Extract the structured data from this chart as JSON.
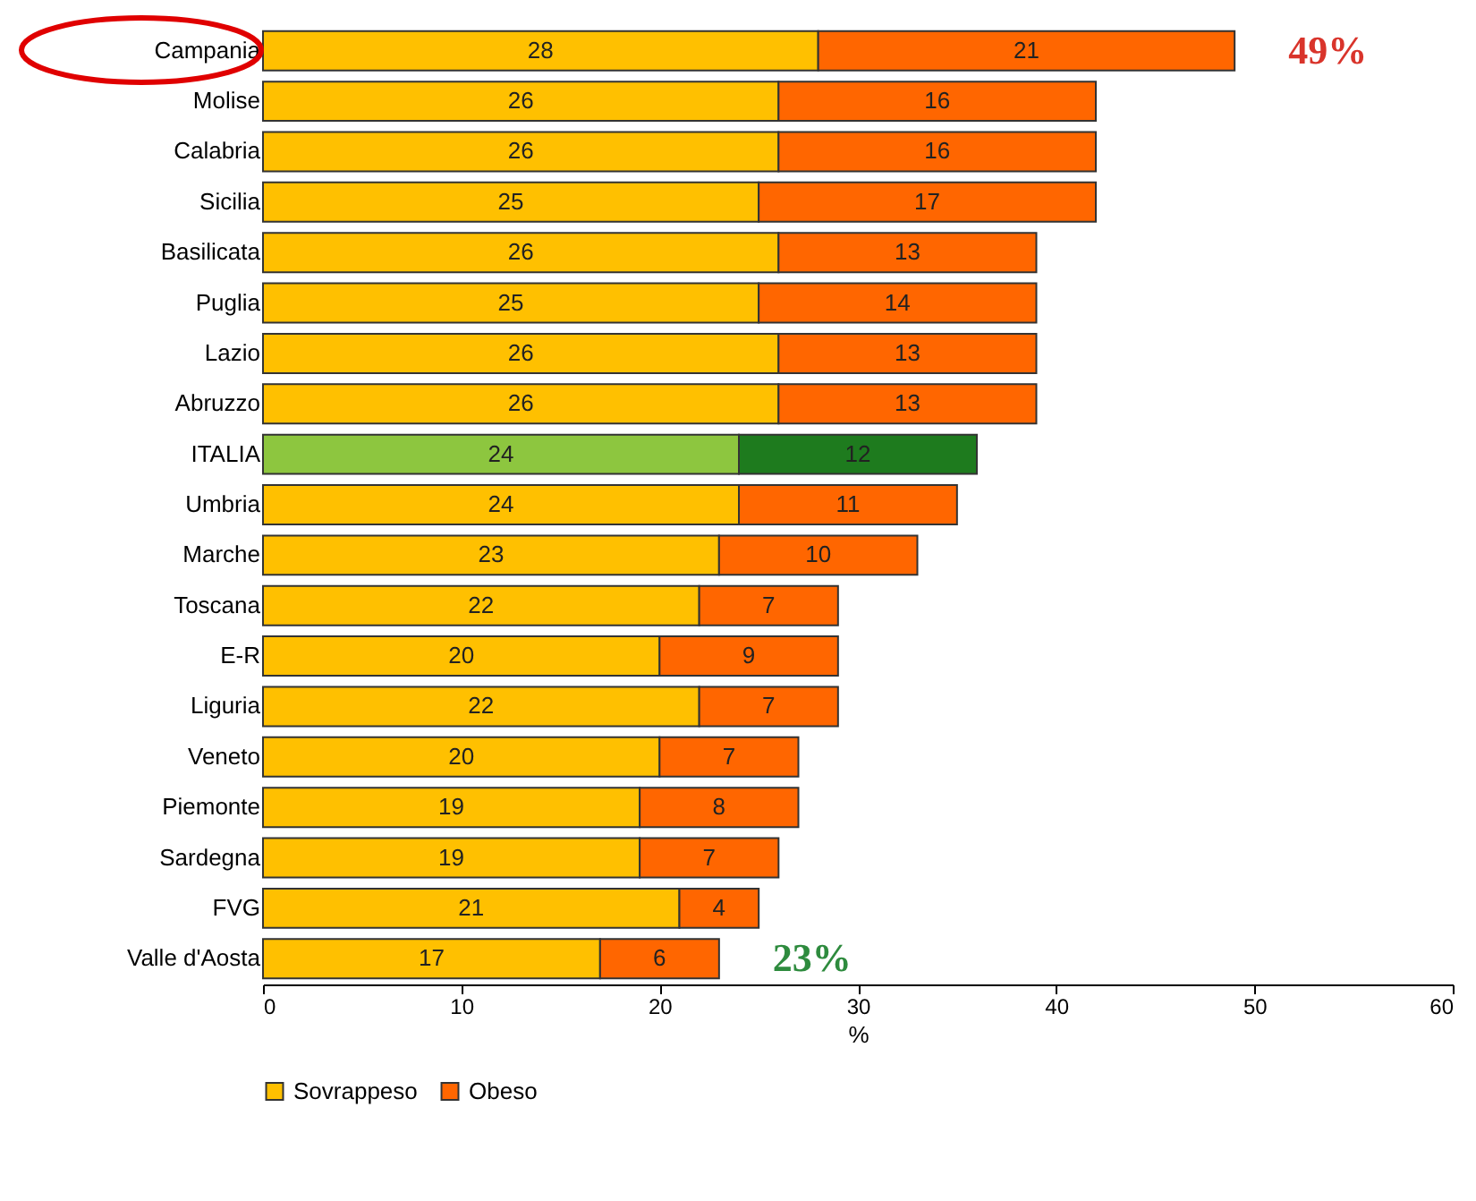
{
  "chart_data": {
    "type": "bar",
    "orientation": "horizontal",
    "stacked": true,
    "data_labels": true,
    "grid": false,
    "legend": "bottom",
    "xlabel": "%",
    "xlim": [
      0,
      60
    ],
    "xticks": [
      0,
      10,
      20,
      30,
      40,
      50,
      60
    ],
    "categories": [
      "Campania",
      "Molise",
      "Calabria",
      "Sicilia",
      "Basilicata",
      "Puglia",
      "Lazio",
      "Abruzzo",
      "ITALIA",
      "Umbria",
      "Marche",
      "Toscana",
      "E-R",
      "Liguria",
      "Veneto",
      "Piemonte",
      "Sardegna",
      "FVG",
      "Valle d'Aosta"
    ],
    "series": [
      {
        "name": "Sovrappeso",
        "color": "#ffc000",
        "colors": [
          "#ffc000",
          "#ffc000",
          "#ffc000",
          "#ffc000",
          "#ffc000",
          "#ffc000",
          "#ffc000",
          "#ffc000",
          "#8dc63f",
          "#ffc000",
          "#ffc000",
          "#ffc000",
          "#ffc000",
          "#ffc000",
          "#ffc000",
          "#ffc000",
          "#ffc000",
          "#ffc000",
          "#ffc000"
        ],
        "values": [
          28,
          26,
          26,
          25,
          26,
          25,
          26,
          26,
          24,
          24,
          23,
          22,
          20,
          22,
          20,
          19,
          19,
          21,
          17
        ]
      },
      {
        "name": "Obeso",
        "color": "#ff6600",
        "colors": [
          "#ff6600",
          "#ff6600",
          "#ff6600",
          "#ff6600",
          "#ff6600",
          "#ff6600",
          "#ff6600",
          "#ff6600",
          "#1e7b1e",
          "#ff6600",
          "#ff6600",
          "#ff6600",
          "#ff6600",
          "#ff6600",
          "#ff6600",
          "#ff6600",
          "#ff6600",
          "#ff6600",
          "#ff6600"
        ],
        "values": [
          21,
          16,
          16,
          17,
          13,
          14,
          13,
          13,
          12,
          11,
          10,
          7,
          9,
          7,
          7,
          8,
          7,
          4,
          6
        ]
      }
    ],
    "annotations": [
      {
        "text": "49%",
        "x": 49,
        "y": "Campania"
      },
      {
        "text": "23%",
        "x": 23,
        "y": "Valle d'Aosta"
      }
    ]
  }
}
